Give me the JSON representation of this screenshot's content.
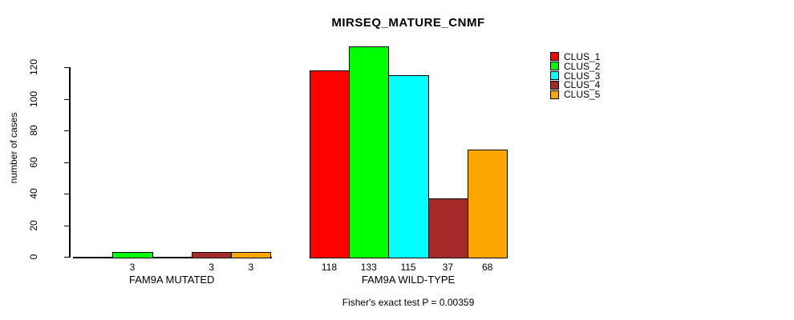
{
  "title": "MIRSEQ_MATURE_CNMF",
  "subtitle": "Fisher's exact test P = 0.00359",
  "ylabel": "number of cases",
  "chart_data": {
    "type": "bar",
    "title": "MIRSEQ_MATURE_CNMF",
    "annotation": "Fisher's exact test P = 0.00359",
    "xlabel": "",
    "ylabel": "number of cases",
    "ylim": [
      0,
      133
    ],
    "yticks": [
      0,
      20,
      40,
      60,
      80,
      100,
      120
    ],
    "grid": false,
    "legend_position": "top-right",
    "groups": [
      "FAM9A MUTATED",
      "FAM9A WILD-TYPE"
    ],
    "series": [
      {
        "name": "CLUS_1",
        "color": "#FF0000",
        "values": [
          0,
          118
        ]
      },
      {
        "name": "CLUS_2",
        "color": "#00FF00",
        "values": [
          3,
          133
        ]
      },
      {
        "name": "CLUS_3",
        "color": "#00FFFF",
        "values": [
          0,
          115
        ]
      },
      {
        "name": "CLUS_4",
        "color": "#A52A2A",
        "values": [
          3,
          37
        ]
      },
      {
        "name": "CLUS_5",
        "color": "#FFA500",
        "values": [
          3,
          68
        ]
      }
    ],
    "bar_value_labels": {
      "FAM9A MUTATED": [
        "",
        "3",
        "",
        "3",
        "3"
      ],
      "FAM9A WILD-TYPE": [
        "118",
        "133",
        "115",
        "37",
        "68"
      ]
    }
  }
}
